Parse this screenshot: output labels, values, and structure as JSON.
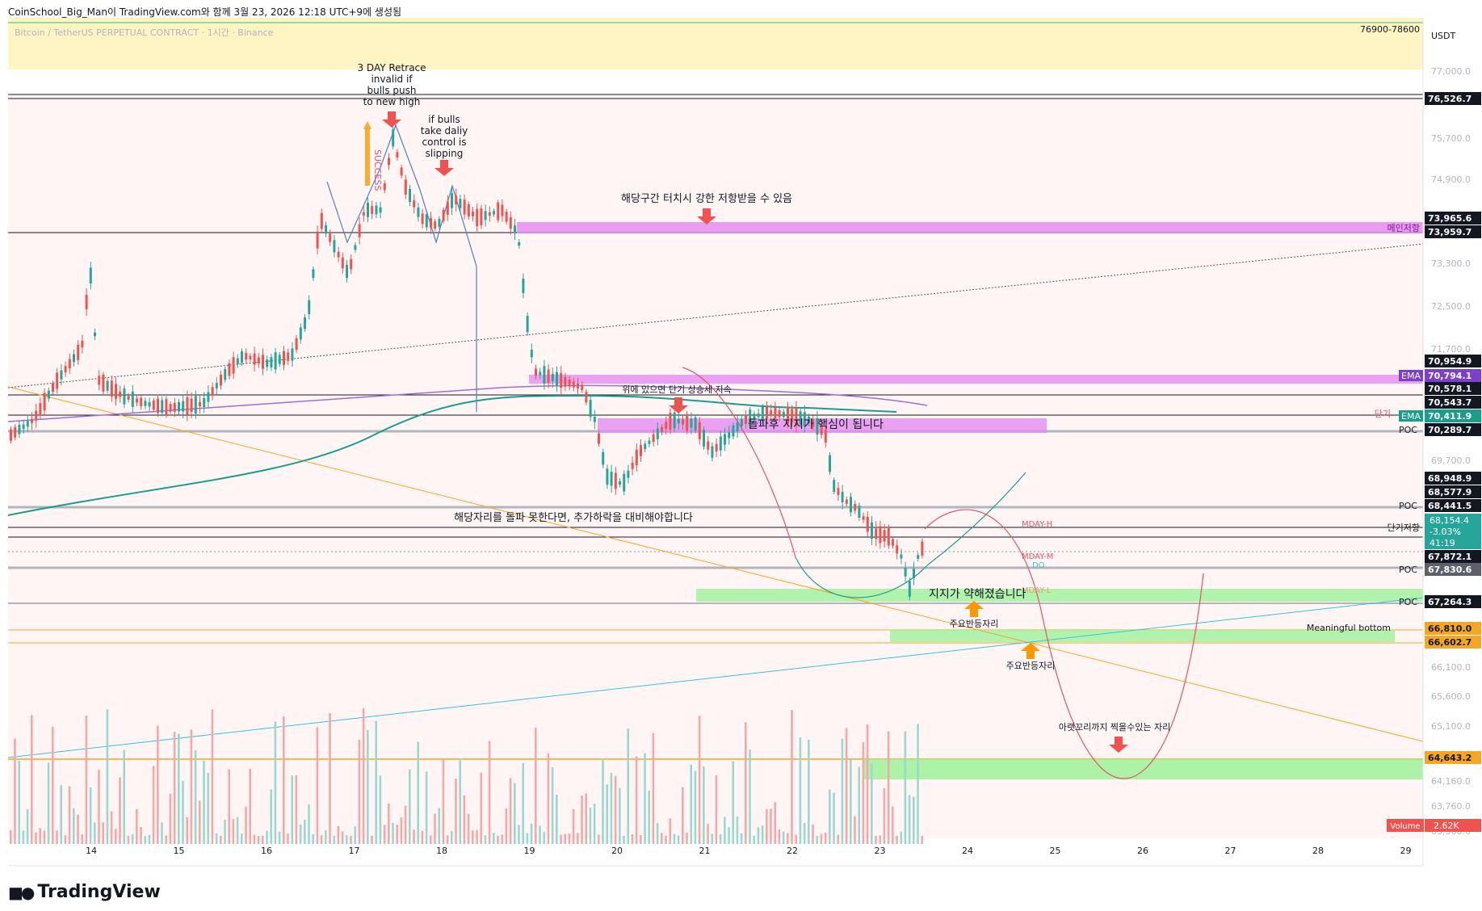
{
  "header": {
    "generated": "CoinSchool_Big_Man이 TradingView.com와 함께 3월 23, 2026 12:18 UTC+9에 생성됨",
    "symbol": "Bitcoin / TetherUS PERPETUAL CONTRACT · 1시간 · Binance",
    "currency": "USDT",
    "top_right_label": "76900-78600"
  },
  "brand": {
    "name": "TradingView"
  },
  "colors": {
    "up": "#26a69a",
    "down": "#ef5350",
    "ema_teal": "#1a9e8a",
    "ema_purple": "#9c6fd1",
    "magenta_zone": "#e58cf0",
    "green_zone": "#9ef29a",
    "orange_line": "#f5a623",
    "cyan_line": "#39c3d6"
  },
  "chart_data": {
    "type": "candlestick",
    "x_ticks": [
      "14",
      "15",
      "16",
      "17",
      "18",
      "19",
      "20",
      "21",
      "22",
      "23",
      "24",
      "25",
      "26",
      "27",
      "28",
      "29"
    ],
    "price_axis_ticks": [
      "77,000.0",
      "75,700.0",
      "74,900.0",
      "73,300.0",
      "72,500.0",
      "71,700.0",
      "69,700.0",
      "66,100.0",
      "65,600.0",
      "65,100.0",
      "64,160.0",
      "63,760.0",
      "63,360.0"
    ],
    "price_labels": [
      {
        "text": "76,526.7",
        "value": 76526.7,
        "style": "black"
      },
      {
        "text": "73,965.6",
        "value": 73965.6,
        "style": "black"
      },
      {
        "text": "73,959.7",
        "value": 73959.7,
        "style": "black"
      },
      {
        "text": "70,954.9",
        "value": 70954.9,
        "style": "black"
      },
      {
        "text": "70,794.1",
        "value": 70794.1,
        "style": "purple",
        "tag": "EMA"
      },
      {
        "text": "70,578.1",
        "value": 70578.1,
        "style": "black"
      },
      {
        "text": "70,543.7",
        "value": 70543.7,
        "style": "black"
      },
      {
        "text": "70,411.9",
        "value": 70411.9,
        "style": "teal",
        "tag": "EMA"
      },
      {
        "text": "70,289.7",
        "value": 70289.7,
        "style": "black",
        "tag": "POC"
      },
      {
        "text": "68,948.9",
        "value": 68948.9,
        "style": "black"
      },
      {
        "text": "68,577.9",
        "value": 68577.9,
        "style": "black"
      },
      {
        "text": "68,441.5",
        "value": 68441.5,
        "style": "black",
        "tag": "POC"
      },
      {
        "text": "67,872.1",
        "value": 67872.1,
        "style": "black"
      },
      {
        "text": "67,830.6",
        "value": 67830.6,
        "style": "gray",
        "tag": "POC"
      },
      {
        "text": "67,264.3",
        "value": 67264.3,
        "style": "black",
        "tag": "POC"
      },
      {
        "text": "66,810.0",
        "value": 66810.0,
        "style": "orange"
      },
      {
        "text": "66,602.7",
        "value": 66602.7,
        "style": "orange"
      },
      {
        "text": "64,643.2",
        "value": 64643.2,
        "style": "orange"
      }
    ],
    "current_price": {
      "price": "68,154.4",
      "change": "-3.03%",
      "timer": "41:19"
    },
    "volume_label": {
      "name": "Volume",
      "value": "2.62K"
    },
    "annotations": [
      "3 DAY Retrace invalid if bulls push to new high",
      "if bulls take daliy control is slipping",
      "SUCCESS",
      "해당구간 터치시 강한 저항받을 수 있음",
      "메인저항",
      "위에 있으면 단기 상승세 지속",
      "돌파후 지지가 핵심이 됩니다",
      "해당자리를 돌파 못한다면, 추가하락을 대비해야합니다",
      "단기저항",
      "MDAY-H",
      "MDAY-M",
      "DO",
      "MDAY-L",
      "지지가 약해졌습니다",
      "주요반등자리",
      "주요반등자리",
      "Meaningful bottom",
      "아랫꼬리까지 찍을수있는 자리",
      "단기"
    ]
  }
}
